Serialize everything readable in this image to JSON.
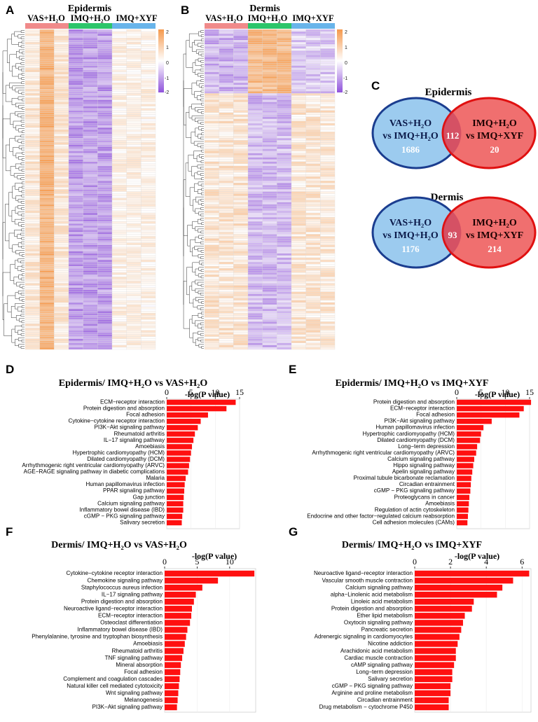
{
  "panel_labels": [
    "A",
    "B",
    "C",
    "D",
    "E",
    "F",
    "G"
  ],
  "colors": {
    "low": "#8f52db",
    "mid": "#ffffff",
    "high": "#f5994c",
    "group_vas": "#f08a8a",
    "group_imq_h2o": "#2cc56a",
    "group_imq_xyf": "#68b4ea",
    "bar": "#ff1010",
    "venn_left_fill": "#9ccbef",
    "venn_left_stroke": "#1b3d8f",
    "venn_right_fill": "#f06f6f",
    "venn_right_stroke": "#e01010",
    "dendro": "#333333"
  },
  "heatmaps": [
    {
      "title": "Epidermis",
      "groups": [
        {
          "name": "VAS+H₂O",
          "color": "#f08a8a"
        },
        {
          "name": "IMQ+H₂O",
          "color": "#2cc56a"
        },
        {
          "name": "IMQ+XYF",
          "color": "#68b4ea"
        }
      ],
      "legend_ticks": [
        "2",
        "1",
        "0",
        "-1",
        "-2"
      ],
      "n_rows": 150,
      "n_cols": 9
    },
    {
      "title": "Dermis",
      "groups": [
        {
          "name": "VAS+H₂O",
          "color": "#f08a8a"
        },
        {
          "name": "IMQ+H₂O",
          "color": "#2cc56a"
        },
        {
          "name": "IMQ+XYF",
          "color": "#68b4ea"
        }
      ],
      "legend_ticks": [
        "2",
        "1",
        "0",
        "-1",
        "-2"
      ],
      "n_rows": 150,
      "n_cols": 9
    }
  ],
  "venns": [
    {
      "title": "Epidermis",
      "left_line1": "VAS+H₂O",
      "left_line2": "vs IMQ+H₂O",
      "right_line1": "IMQ+H₂O",
      "right_line2": "vs IMQ+XYF",
      "left_only": "1686",
      "overlap": "112",
      "right_only": "20"
    },
    {
      "title": "Dermis",
      "left_line1": "VAS+H₂O",
      "left_line2": "vs IMQ+H₂O",
      "right_line1": "IMQ+H₂O",
      "right_line2": "vs IMQ+XYF",
      "left_only": "1176",
      "overlap": "93",
      "right_only": "214"
    }
  ],
  "chart_data": [
    {
      "type": "bar",
      "title": "Epidermis/ IMQ+H₂O vs VAS+H₂O",
      "xlabel": "-log(P value)",
      "xlim": [
        0,
        15
      ],
      "xticks": [
        0,
        5,
        10,
        15
      ],
      "categories": [
        "ECM−receptor interaction",
        "Protein digestion and absorption",
        "Focal adhesion",
        "Cytokine−cytokine receptor interaction",
        "PI3K−Akt signaling pathway",
        "Rheumatoid arthritis",
        "IL−17 signaling pathway",
        "Amoebiasis",
        "Hypertrophic cardiomyopathy (HCM)",
        "Dilated cardiomyopathy (DCM)",
        "Arrhythmogenic right ventricular cardiomyopathy (ARVC)",
        "AGE−RAGE signaling pathway in diabetic complications",
        "Malaria",
        "Human papillomavirus infection",
        "PPAR signaling pathway",
        "Gap junction",
        "Calcium signaling pathway",
        "Inflammatory bowel disease (IBD)",
        "cGMP − PKG signaling pathway",
        "Salivary secretion"
      ],
      "values": [
        14.2,
        12.3,
        8.5,
        7.0,
        6.4,
        5.8,
        5.5,
        5.2,
        5.0,
        4.8,
        4.6,
        4.4,
        3.9,
        3.7,
        3.6,
        3.5,
        3.4,
        3.4,
        3.2,
        3.1
      ]
    },
    {
      "type": "bar",
      "title": "Epidermis/ IMQ+H₂O vs IMQ+XYF",
      "xlabel": "-log(P value)",
      "xlim": [
        0,
        15
      ],
      "xticks": [
        0,
        5,
        10,
        15
      ],
      "categories": [
        "Protein digestion and absorption",
        "ECM−receptor interaction",
        "Focal adhesion",
        "PI3K−Akt signaling pathway",
        "Human papillomavirus infection",
        "Hypertrophic cardiomyopathy (HCM)",
        "Dilated cardiomyopathy (DCM)",
        "Long−term depression",
        "Arrhythmogenic right ventricular cardiomyopathy (ARVC)",
        "Calcium signaling pathway",
        "Hippo signaling pathway",
        "Apelin signaling pathway",
        "Proximal tubule bicarbonate reclamation",
        "Circadian entrainment",
        "cGMP − PKG signaling pathway",
        "Proteoglycans in cancer",
        "Amoebiasis",
        "Regulation of actin cytoskeleton",
        "Endocrine and other factor−regulated calcium reabsorption",
        "Cell adhesion molecules (CAMs)"
      ],
      "values": [
        15.3,
        13.8,
        12.9,
        7.2,
        5.5,
        5.0,
        4.8,
        4.2,
        4.0,
        3.6,
        3.4,
        3.2,
        3.0,
        2.9,
        2.8,
        2.6,
        2.5,
        2.4,
        2.3,
        2.2
      ]
    },
    {
      "type": "bar",
      "title": "Dermis/ IMQ+H₂O vs VAS+H₂O",
      "xlabel": "-log(P value)",
      "xlim": [
        0,
        14
      ],
      "xticks": [
        0,
        5,
        10
      ],
      "categories": [
        "Cytokine−cytokine receptor interaction",
        "Chemokine signaling pathway",
        "Staphylococcus aureus infection",
        "IL−17 signaling pathway",
        "Protein digestion and absorption",
        "Neuroactive ligand−receptor interaction",
        "ECM−receptor interaction",
        "Osteoclast differentiation",
        "Inflammatory bowel disease (IBD)",
        "Phenylalanine, tyrosine and tryptophan biosynthesis",
        "Amoebiasis",
        "Rheumatoid arthritis",
        "TNF signaling pathway",
        "Mineral absorption",
        "Focal adhesion",
        "Complement and coagulation cascades",
        "Natural killer cell mediated cytotoxicity",
        "Wnt signaling pathway",
        "Melanogenesis",
        "PI3K−Akt signaling pathway"
      ],
      "values": [
        13.8,
        8.2,
        5.8,
        4.8,
        4.5,
        4.2,
        4.1,
        3.9,
        3.5,
        3.3,
        3.1,
        2.9,
        2.7,
        2.5,
        2.4,
        2.3,
        2.2,
        2.1,
        2.0,
        1.9
      ]
    },
    {
      "type": "bar",
      "title": "Dermis/ IMQ+H₂O vs IMQ+XYF",
      "xlabel": "-log(P value)",
      "xlim": [
        0,
        6.5
      ],
      "xticks": [
        0,
        2,
        4,
        6
      ],
      "categories": [
        "Neuroactive ligand−receptor interaction",
        "Vascular smooth muscle contraction",
        "Calcium signaling pathway",
        "alpha−Linolenic acid metabolism",
        "Linoleic acid metabolism",
        "Protein digestion and absorption",
        "Ether lipid metabolism",
        "Oxytocin signaling pathway",
        "Pancreatic secretion",
        "Adrenergic signaling in cardiomyocytes",
        "Nicotine addiction",
        "Arachidonic acid metabolism",
        "Cardiac muscle contraction",
        "cAMP signaling pathway",
        "Long−term depression",
        "Salivary secretion",
        "cGMP − PKG signaling pathway",
        "Arginine and proline metabolism",
        "Circadian entrainment",
        "Drug metabolism − cytochrome P450"
      ],
      "values": [
        6.4,
        5.5,
        4.9,
        4.6,
        3.3,
        3.2,
        2.8,
        2.7,
        2.6,
        2.5,
        2.4,
        2.3,
        2.3,
        2.2,
        2.1,
        2.1,
        2.0,
        2.0,
        1.9,
        1.9
      ]
    }
  ]
}
